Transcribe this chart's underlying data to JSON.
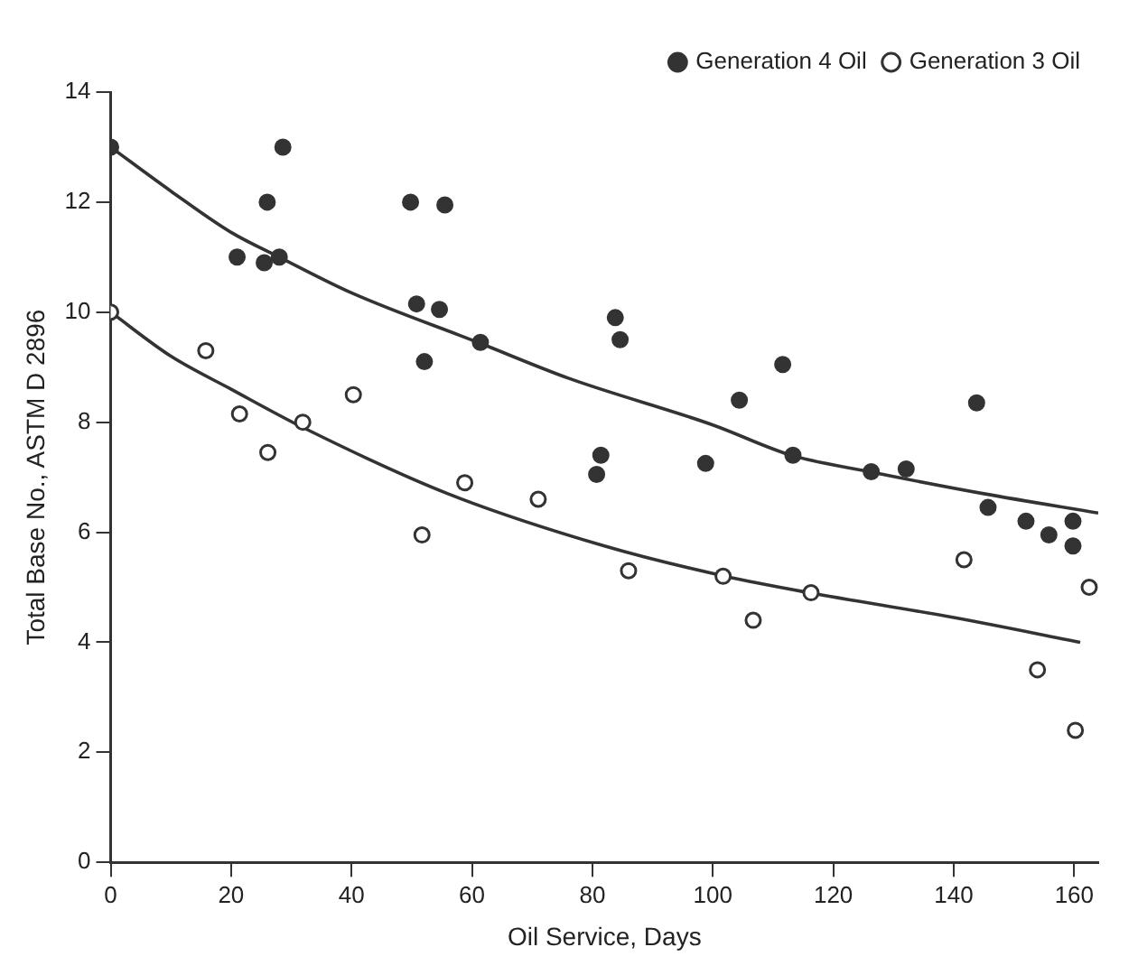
{
  "chart_data": {
    "type": "scatter",
    "xlabel": "Oil Service, Days",
    "ylabel": "Total Base No., ASTM D 2896",
    "xlim": [
      0,
      164
    ],
    "ylim": [
      0,
      14
    ],
    "xticks": [
      0,
      20,
      40,
      60,
      80,
      100,
      120,
      140,
      160
    ],
    "yticks": [
      0,
      2,
      4,
      6,
      8,
      10,
      12,
      14
    ],
    "grid": false,
    "legend": "top right",
    "marker": "circle",
    "series": [
      {
        "name": "Generation 4 Oil",
        "color": "#333333",
        "x": [
          0,
          21,
          26,
          28.6,
          25.5,
          28,
          49.8,
          55.5,
          50.8,
          54.6,
          52.1,
          61.4,
          81.4,
          80.7,
          83.8,
          84.6,
          111.6,
          104.4,
          143.8,
          98.8,
          113.3,
          126.3,
          132.1,
          145.7,
          152,
          155.8,
          159.8,
          159.8
        ],
        "values": [
          13,
          11,
          12,
          13,
          10.9,
          11,
          12,
          11.95,
          10.15,
          10.05,
          9.1,
          9.45,
          7.4,
          7.05,
          9.9,
          9.5,
          9.05,
          8.4,
          8.35,
          7.25,
          7.4,
          7.1,
          7.15,
          6.45,
          6.2,
          5.95,
          6.2,
          5.75
        ]
      },
      {
        "name": "Generation 3 Oil",
        "color": "#333333",
        "x": [
          0,
          15.8,
          21.4,
          26.1,
          31.9,
          40.3,
          58.8,
          51.7,
          71,
          86,
          101.7,
          106.7,
          116.3,
          141.7,
          153.9,
          160.2,
          162.5
        ],
        "values": [
          10,
          9.3,
          8.15,
          7.45,
          8,
          8.5,
          6.9,
          5.95,
          6.6,
          5.3,
          5.2,
          4.4,
          4.9,
          5.5,
          3.5,
          2.4,
          5
        ]
      },
      {
        "type": "line",
        "color": "#333333",
        "marker": "none",
        "x": [
          0,
          10,
          20,
          28,
          40,
          61,
          76,
          100,
          113,
          126,
          145,
          164
        ],
        "values": [
          13,
          12.2,
          11.45,
          11,
          10.35,
          9.45,
          8.8,
          7.95,
          7.4,
          7.1,
          6.7,
          6.35
        ]
      },
      {
        "type": "line",
        "color": "#333333",
        "marker": "none",
        "x": [
          0,
          10,
          20,
          32,
          56,
          82,
          102,
          116,
          140,
          161
        ],
        "values": [
          10,
          9.2,
          8.6,
          7.9,
          6.7,
          5.75,
          5.2,
          4.9,
          4.45,
          4
        ]
      }
    ]
  }
}
